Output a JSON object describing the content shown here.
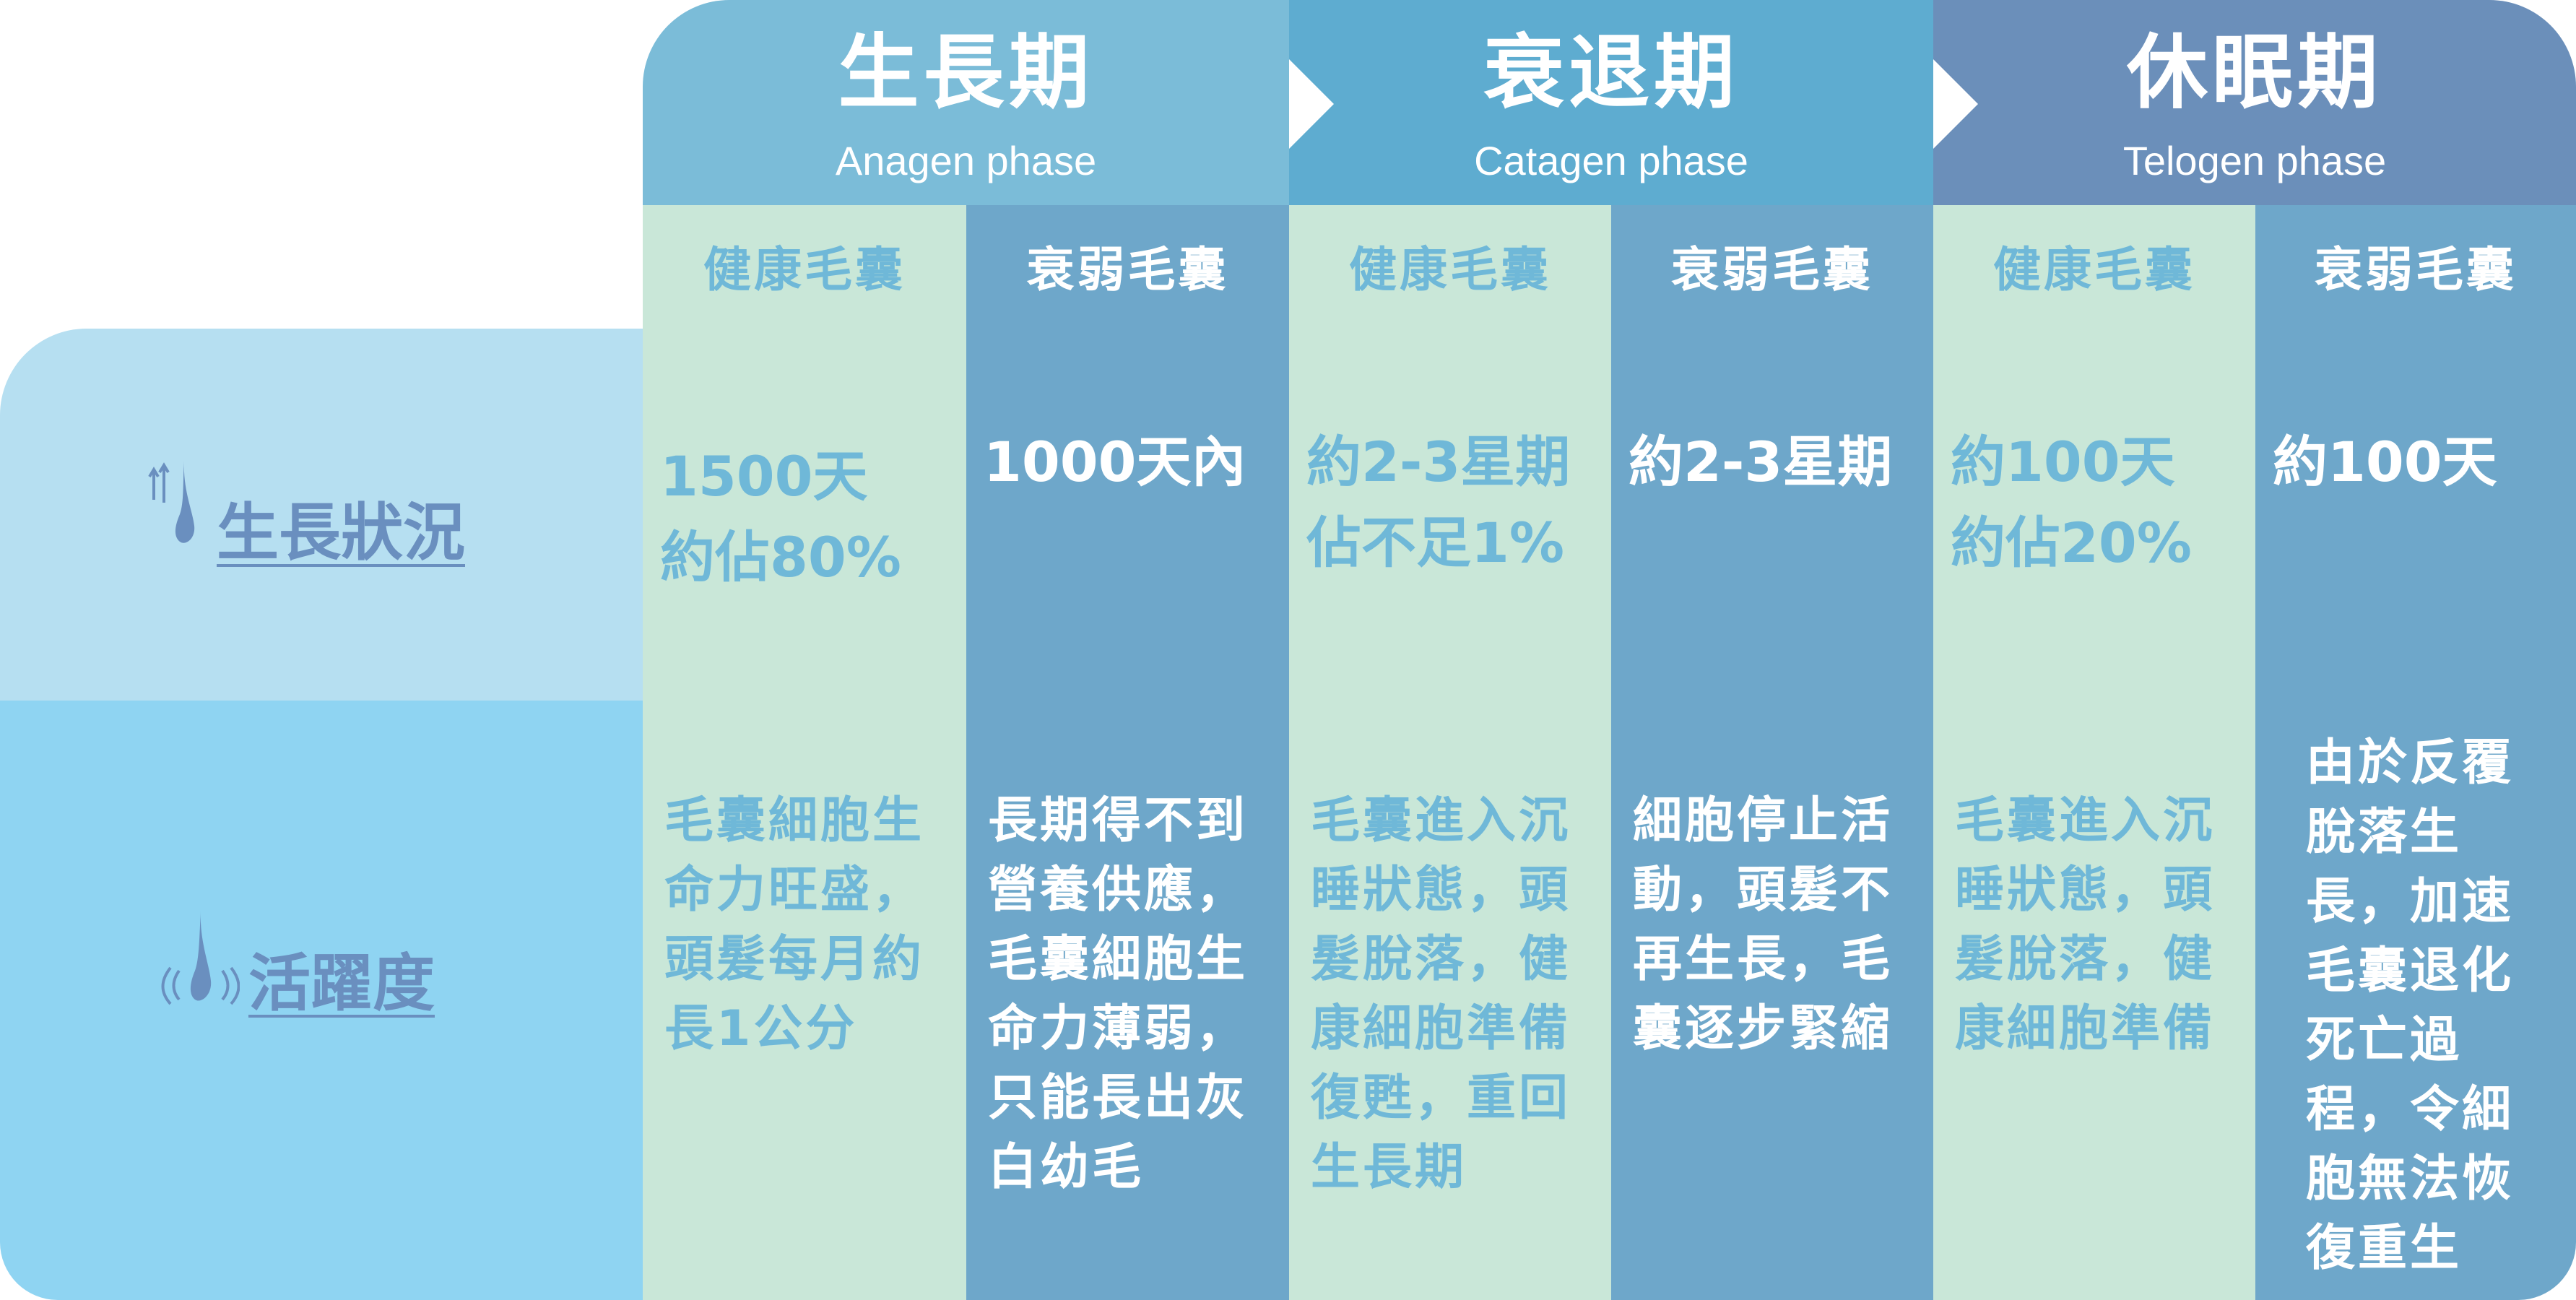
{
  "phases": [
    {
      "zh": "生長期",
      "en": "Anagen phase"
    },
    {
      "zh": "衰退期",
      "en": "Catagen phase"
    },
    {
      "zh": "休眠期",
      "en": "Telogen phase"
    }
  ],
  "rows": {
    "growth": {
      "label": "生長狀況",
      "icon": "hair-growth-icon"
    },
    "activity": {
      "label": "活躍度",
      "icon": "hair-vibration-icon"
    }
  },
  "columns": [
    {
      "header": "健康毛囊",
      "growth": "1500天\n約佔80%",
      "activity": "毛囊細胞生\n命力旺盛，\n頭髮每月約\n長1公分"
    },
    {
      "header": "衰弱毛囊",
      "growth": "1000天內",
      "activity": "長期得不到\n營養供應，\n毛囊細胞生\n命力薄弱，\n只能長出灰\n白幼毛"
    },
    {
      "header": "健康毛囊",
      "growth": "約2-3星期\n佔不足1%",
      "activity": "毛囊進入沉\n睡狀態，頭\n髮脫落，健\n康細胞準備\n復甦，重回\n生長期"
    },
    {
      "header": "衰弱毛囊",
      "growth": "約2-3星期",
      "activity": "細胞停止活\n動，頭髮不\n再生長，毛\n囊逐步緊縮"
    },
    {
      "header": "健康毛囊",
      "growth": "約100天\n約佔20%",
      "activity": "毛囊進入沉\n睡狀態，頭\n髮脫落，健\n康細胞準備"
    },
    {
      "header": "衰弱毛囊",
      "growth": "約100天",
      "activity": "由於反覆\n脫落生\n長，加速\n毛囊退化\n死亡過\n程，令細\n胞無法恢\n復重生"
    }
  ],
  "colors": {
    "anagen": "#7bbcd8",
    "catagen": "#5eacd0",
    "telogen": "#6b8fba",
    "healthy_bg": "#c9e7d8",
    "healthy_text": "#6fb8d8",
    "weak_bg": "#6ea7ca",
    "row_label": "#6a8fbf"
  }
}
